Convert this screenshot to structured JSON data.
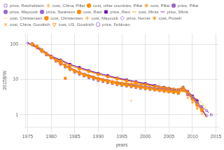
{
  "chart_data": {
    "type": "line",
    "x_label": "years",
    "y_label": "2015$/W",
    "log": "y",
    "grid": true,
    "legend": "top",
    "xlim": [
      1974.5,
      2015.5
    ],
    "xticks": [
      1975,
      1980,
      1985,
      1990,
      1995,
      2000,
      2005,
      2010,
      2015
    ],
    "ylim": [
      0.45,
      200
    ],
    "yticks": [
      1,
      10,
      100
    ],
    "series": [
      {
        "name": "price, Reichelstein",
        "color": "#9966CC",
        "marker": "open_square",
        "line_style": "dashed",
        "x": [
          2009,
          2010,
          2011,
          2012,
          2013,
          2014
        ],
        "values": [
          3.8,
          3.1,
          2.3,
          1.7,
          1.3,
          1.0
        ]
      },
      {
        "name": "cost, China, Pillai",
        "color": "#FF8C00",
        "marker": "plus",
        "line_style": "solid",
        "x": [
          1979,
          1980,
          1981,
          1982,
          1983,
          1984,
          1985,
          1986,
          1987,
          1988,
          1989,
          1990,
          1991,
          1992,
          1993,
          1994,
          1995,
          1996,
          1997,
          1998,
          1999,
          2000,
          2001,
          2002,
          2003,
          2004,
          2005,
          2006,
          2007,
          2008,
          2009,
          2010,
          2011
        ],
        "values": [
          55,
          43,
          37,
          30,
          25,
          21,
          18,
          16,
          14,
          13,
          12,
          11,
          10,
          9.5,
          9.0,
          8.6,
          8.2,
          7.9,
          7.7,
          7.5,
          7.2,
          7.0,
          6.7,
          6.5,
          6.3,
          6.0,
          5.8,
          5.5,
          5.3,
          6.2,
          4.5,
          3.2,
          2.1
        ]
      },
      {
        "name": "cost, other countries, Pillai",
        "color": "#FF8C00",
        "marker": "circle",
        "line_style": "solid",
        "x": [
          1976,
          1977,
          1978,
          1979,
          1980,
          1981,
          1982,
          1983,
          1984,
          1985,
          1986,
          1987,
          1988,
          1989,
          1990,
          1991,
          1992,
          1993,
          1994,
          1995,
          1996,
          1997,
          1998,
          1999,
          2000,
          2001,
          2002,
          2003,
          2004,
          2005,
          2006,
          2007,
          2008,
          2009,
          2010,
          2011,
          2012
        ],
        "values": [
          100,
          85,
          68,
          53,
          43,
          35,
          29,
          24,
          20,
          17,
          15,
          13,
          12,
          11,
          10,
          9.3,
          8.6,
          8.0,
          7.5,
          7.1,
          6.8,
          6.5,
          6.2,
          5.9,
          5.6,
          5.4,
          5.2,
          5.0,
          4.8,
          4.6,
          4.4,
          4.2,
          5.0,
          3.8,
          2.8,
          1.9,
          1.4
        ]
      },
      {
        "name": "cost, Pillai",
        "color": "#FF8C00",
        "marker": "star",
        "line_style": "dashdot",
        "x": [
          1976,
          1977,
          1978,
          1979,
          1980,
          1981,
          1982,
          1983,
          1984,
          1985,
          1986,
          1987,
          1988,
          1989,
          1990,
          1991,
          1992,
          1993,
          1994,
          1995,
          1996,
          1997,
          1998,
          1999,
          2000,
          2001,
          2002,
          2003,
          2004,
          2005,
          2006,
          2007,
          2008,
          2009,
          2010,
          2011,
          2012
        ],
        "values": [
          105,
          88,
          70,
          55,
          44,
          36,
          30,
          25,
          21,
          18,
          16,
          14,
          12.5,
          11.5,
          10.5,
          9.8,
          9.1,
          8.5,
          8.0,
          7.6,
          7.2,
          6.9,
          6.6,
          6.3,
          6.0,
          5.8,
          5.5,
          5.3,
          5.1,
          4.9,
          4.7,
          4.5,
          5.3,
          4.0,
          2.9,
          2.0,
          1.5
        ]
      },
      {
        "name": "price, Pillai",
        "color": "#9966CC",
        "marker": "dot",
        "line_style": "dashed",
        "x": [
          1976,
          1977,
          1978,
          1979,
          1980,
          1981,
          1982,
          1983,
          1984,
          1985,
          1986,
          1987,
          1988,
          1989,
          1990,
          1991,
          1992,
          1993,
          1994,
          1995,
          1996,
          1997,
          1998,
          1999,
          2000,
          2001,
          2002,
          2003,
          2004,
          2005,
          2006,
          2007,
          2008,
          2009,
          2010,
          2011,
          2012
        ],
        "values": [
          108,
          91,
          72,
          57,
          46,
          38,
          31,
          26,
          22,
          18.5,
          16.5,
          14.5,
          13,
          12,
          11,
          10.2,
          9.5,
          8.8,
          8.3,
          7.9,
          7.5,
          7.2,
          6.9,
          6.6,
          6.3,
          6.1,
          5.8,
          5.6,
          5.4,
          5.2,
          5.0,
          4.8,
          5.6,
          4.2,
          3.2,
          2.2,
          1.65
        ]
      },
      {
        "name": "price, Maycock",
        "color": "#9966CC",
        "marker": "dot",
        "line_style": "dashed",
        "x": [
          1976,
          1977,
          1978,
          1979,
          1980,
          1981,
          1982,
          1983,
          1984,
          1985,
          1986,
          1987,
          1988,
          1989,
          1990,
          1991,
          1992,
          1993,
          1994,
          1995,
          1996,
          1997,
          1998,
          1999,
          2000,
          2001,
          2002,
          2003,
          2004
        ],
        "values": [
          106,
          89,
          71,
          56,
          45,
          37,
          30.5,
          25.5,
          21.5,
          18,
          16,
          14.2,
          12.7,
          11.6,
          10.6,
          9.8,
          9.1,
          8.5,
          8.0,
          7.6,
          7.2,
          6.9,
          6.6,
          6.3,
          6.1,
          5.8,
          5.6,
          5.4,
          5.2
        ]
      },
      {
        "name": "price, Swanson",
        "color": "#9966CC",
        "marker": "dot",
        "line_style": "dashed",
        "x": [
          1976,
          1977,
          1978,
          1979,
          1980,
          1981,
          1982,
          1983,
          1984,
          1985,
          1986,
          1987,
          1988,
          1989,
          1990,
          1991,
          1992,
          1993,
          1994,
          1995,
          1996,
          1997,
          1998,
          1999,
          2000,
          2001,
          2002,
          2003,
          2004,
          2005,
          2006,
          2007
        ],
        "values": [
          104,
          87,
          70,
          54,
          44,
          36,
          29.5,
          24.5,
          20.5,
          17.5,
          15.5,
          13.8,
          12.3,
          11.2,
          10.2,
          9.4,
          8.8,
          8.2,
          7.7,
          7.3,
          7.0,
          6.7,
          6.4,
          6.1,
          5.8,
          5.6,
          5.4,
          5.2,
          5.0,
          4.8,
          4.6,
          4.4
        ]
      },
      {
        "name": "cost, Ravi",
        "color": "#FF8C00",
        "marker": "circle",
        "line_style": "solid",
        "x": [
          1978,
          1980,
          1982,
          1984,
          1986,
          1988,
          1990,
          1992,
          1994,
          1996,
          1998,
          2000,
          2002,
          2004,
          2005,
          2006,
          2007,
          2008,
          2009,
          2010,
          2011
        ],
        "values": [
          65,
          43,
          34,
          25,
          20,
          17,
          14,
          12,
          10.5,
          9.2,
          8.2,
          7.2,
          6.4,
          5.6,
          5.2,
          4.9,
          4.7,
          5.5,
          4.2,
          3.1,
          2.2
        ]
      },
      {
        "name": "price, Ravi",
        "color": "#6600AA",
        "marker": "square",
        "line_style": "solid",
        "x": [
          1978,
          1980,
          1982,
          1984,
          1986,
          1988,
          1990,
          1992,
          1994,
          1996,
          1998,
          2000,
          2002,
          2004,
          2005,
          2006,
          2007,
          2008,
          2009,
          2010,
          2011
        ],
        "values": [
          70,
          46,
          36,
          27,
          22,
          18,
          15,
          13,
          11,
          9.8,
          8.7,
          7.7,
          6.8,
          6.0,
          5.6,
          5.3,
          5.1,
          6.0,
          4.6,
          3.4,
          2.5
        ]
      },
      {
        "name": "cost, Mints",
        "color": "#FF8C00",
        "marker": "none",
        "line_style": "solid",
        "x": [
          1992,
          1993,
          1994,
          1995,
          1996,
          1997,
          1998,
          1999,
          2000,
          2001,
          2002,
          2003,
          2004,
          2005,
          2006,
          2007,
          2008,
          2009,
          2010,
          2011,
          2012,
          2013
        ],
        "values": [
          9.5,
          8.8,
          8.2,
          7.7,
          7.3,
          7.0,
          6.7,
          6.4,
          6.1,
          5.8,
          5.6,
          5.4,
          5.1,
          4.9,
          4.7,
          4.5,
          5.2,
          3.9,
          2.9,
          2.0,
          1.3,
          0.85
        ]
      },
      {
        "name": "price, Mints",
        "color": "#6600AA",
        "marker": "none",
        "line_style": "solid",
        "x": [
          1975,
          1976,
          1977,
          1978,
          1979,
          1980,
          1981,
          1982,
          1983,
          1984,
          1985,
          1986,
          1987,
          1988,
          1989,
          1990,
          1991,
          1992,
          1993,
          1994,
          1995,
          1996,
          1997,
          1998,
          1999,
          2000,
          2001,
          2002,
          2003,
          2004,
          2005,
          2006,
          2007,
          2008,
          2009,
          2010,
          2011,
          2012,
          2013
        ],
        "values": [
          110,
          95,
          80,
          65,
          52,
          43,
          35,
          29,
          24.5,
          21,
          18,
          16,
          14.5,
          13.2,
          12.1,
          11.1,
          10.3,
          9.6,
          8.9,
          8.4,
          7.9,
          7.5,
          7.2,
          6.8,
          6.5,
          6.2,
          6.0,
          5.7,
          5.5,
          5.2,
          5.0,
          4.8,
          4.6,
          5.4,
          4.0,
          3.0,
          2.1,
          1.4,
          0.9
        ]
      },
      {
        "name": "cost, Christensen",
        "color": "#FFCC88",
        "marker": "none",
        "line_style": "dashed",
        "x": [
          1975,
          1980,
          1985,
          1990,
          1995,
          2000,
          2005,
          2008,
          2010,
          2012,
          2013
        ],
        "values": [
          105,
          43,
          19,
          11,
          7.5,
          5.5,
          4.2,
          5.0,
          3.5,
          2.2,
          1.5
        ]
      },
      {
        "name": "cost, Christensen",
        "color": "#FF8C00",
        "marker": "circle",
        "line_style": "none",
        "x": [
          2004,
          2005,
          2006,
          2007,
          2008,
          2009,
          2010,
          2011,
          2012
        ],
        "values": [
          4.8,
          4.6,
          4.4,
          4.2,
          5.0,
          3.7,
          2.8,
          1.9,
          1.3
        ]
      },
      {
        "name": "cost, Maycock",
        "color": "#FF8C00",
        "marker": "plus",
        "line_style": "none",
        "x": [
          2009,
          2010,
          2011
        ],
        "values": [
          3.0,
          2.2,
          1.5
        ]
      },
      {
        "name": "price, Nemet",
        "color": "#9966CC",
        "marker": "open_diamond",
        "line_style": "none",
        "x": [
          1975,
          1976,
          1977,
          1978,
          1979,
          1980,
          1981,
          1982,
          1983,
          1984,
          1985,
          1986,
          1987,
          1988,
          1989,
          1990,
          1991,
          1992,
          1993,
          1994,
          1995,
          1996,
          1997,
          1998,
          1999,
          2000,
          2001,
          2002,
          2003
        ],
        "values": [
          108,
          93,
          77,
          62,
          50,
          41,
          34,
          28,
          23.5,
          20,
          17,
          15.2,
          13.5,
          12.2,
          11.2,
          10.2,
          9.5,
          8.8,
          8.3,
          7.9,
          7.5,
          7.2,
          6.9,
          6.6,
          6.3,
          6.0,
          5.8,
          5.6,
          5.4
        ]
      },
      {
        "name": "cost, Powell",
        "color": "#FF8C00",
        "marker": "star",
        "line_style": "none",
        "x": [
          2006,
          2007,
          2008,
          2009,
          2010,
          2011,
          2012
        ],
        "values": [
          4.4,
          4.2,
          5.0,
          3.7,
          2.7,
          1.9,
          1.3
        ]
      },
      {
        "name": "cost, China, Goodrich",
        "color": "#FF8C00",
        "marker": "x",
        "line_style": "none",
        "x": [
          2010,
          2011,
          2012
        ],
        "values": [
          2.3,
          1.6,
          1.05
        ]
      },
      {
        "name": "cost, US, Goodrich",
        "color": "#FF8C00",
        "marker": "open_triangle_down",
        "line_style": "none",
        "x": [
          2010,
          2011,
          2012
        ],
        "values": [
          2.8,
          2.0,
          1.35
        ]
      },
      {
        "name": "price, Feldman",
        "color": "#9966CC",
        "marker": "open_circle",
        "line_style": "none",
        "x": [
          2010,
          2011,
          2012,
          2013
        ],
        "values": [
          2.9,
          2.1,
          1.4,
          0.95
        ]
      },
      {
        "color": "#9966CC",
        "marker": "square",
        "line_style": "none",
        "x": [
          1976,
          1977,
          1978,
          1979,
          1980,
          1981,
          1982,
          1983,
          1984,
          1985,
          1986,
          1987,
          1988,
          1989,
          1990,
          1991,
          1992,
          1993,
          1994,
          1995,
          1996,
          1997,
          1998,
          1999,
          2000,
          2001,
          2002,
          2003,
          2004,
          2005,
          2006,
          2007,
          2008,
          2009,
          2010,
          2011,
          2012
        ],
        "values": [
          95,
          80,
          63,
          50,
          41,
          33,
          27,
          22.5,
          19,
          16,
          14,
          12.5,
          11.2,
          10.2,
          9.3,
          8.7,
          8.1,
          7.6,
          7.1,
          6.8,
          6.5,
          6.2,
          5.9,
          5.6,
          5.4,
          5.2,
          5.0,
          4.8,
          4.6,
          4.4,
          4.2,
          4.0,
          4.8,
          3.7,
          2.8,
          1.9,
          1.4
        ]
      },
      {
        "color": "#FF8C00",
        "marker": "circle",
        "line_style": "none",
        "x": [
          1983
        ],
        "values": [
          10.8
        ]
      },
      {
        "color": "#FFCC88",
        "marker": "plus",
        "line_style": "none",
        "x": [
          1997
        ],
        "values": [
          2.5
        ]
      }
    ]
  }
}
